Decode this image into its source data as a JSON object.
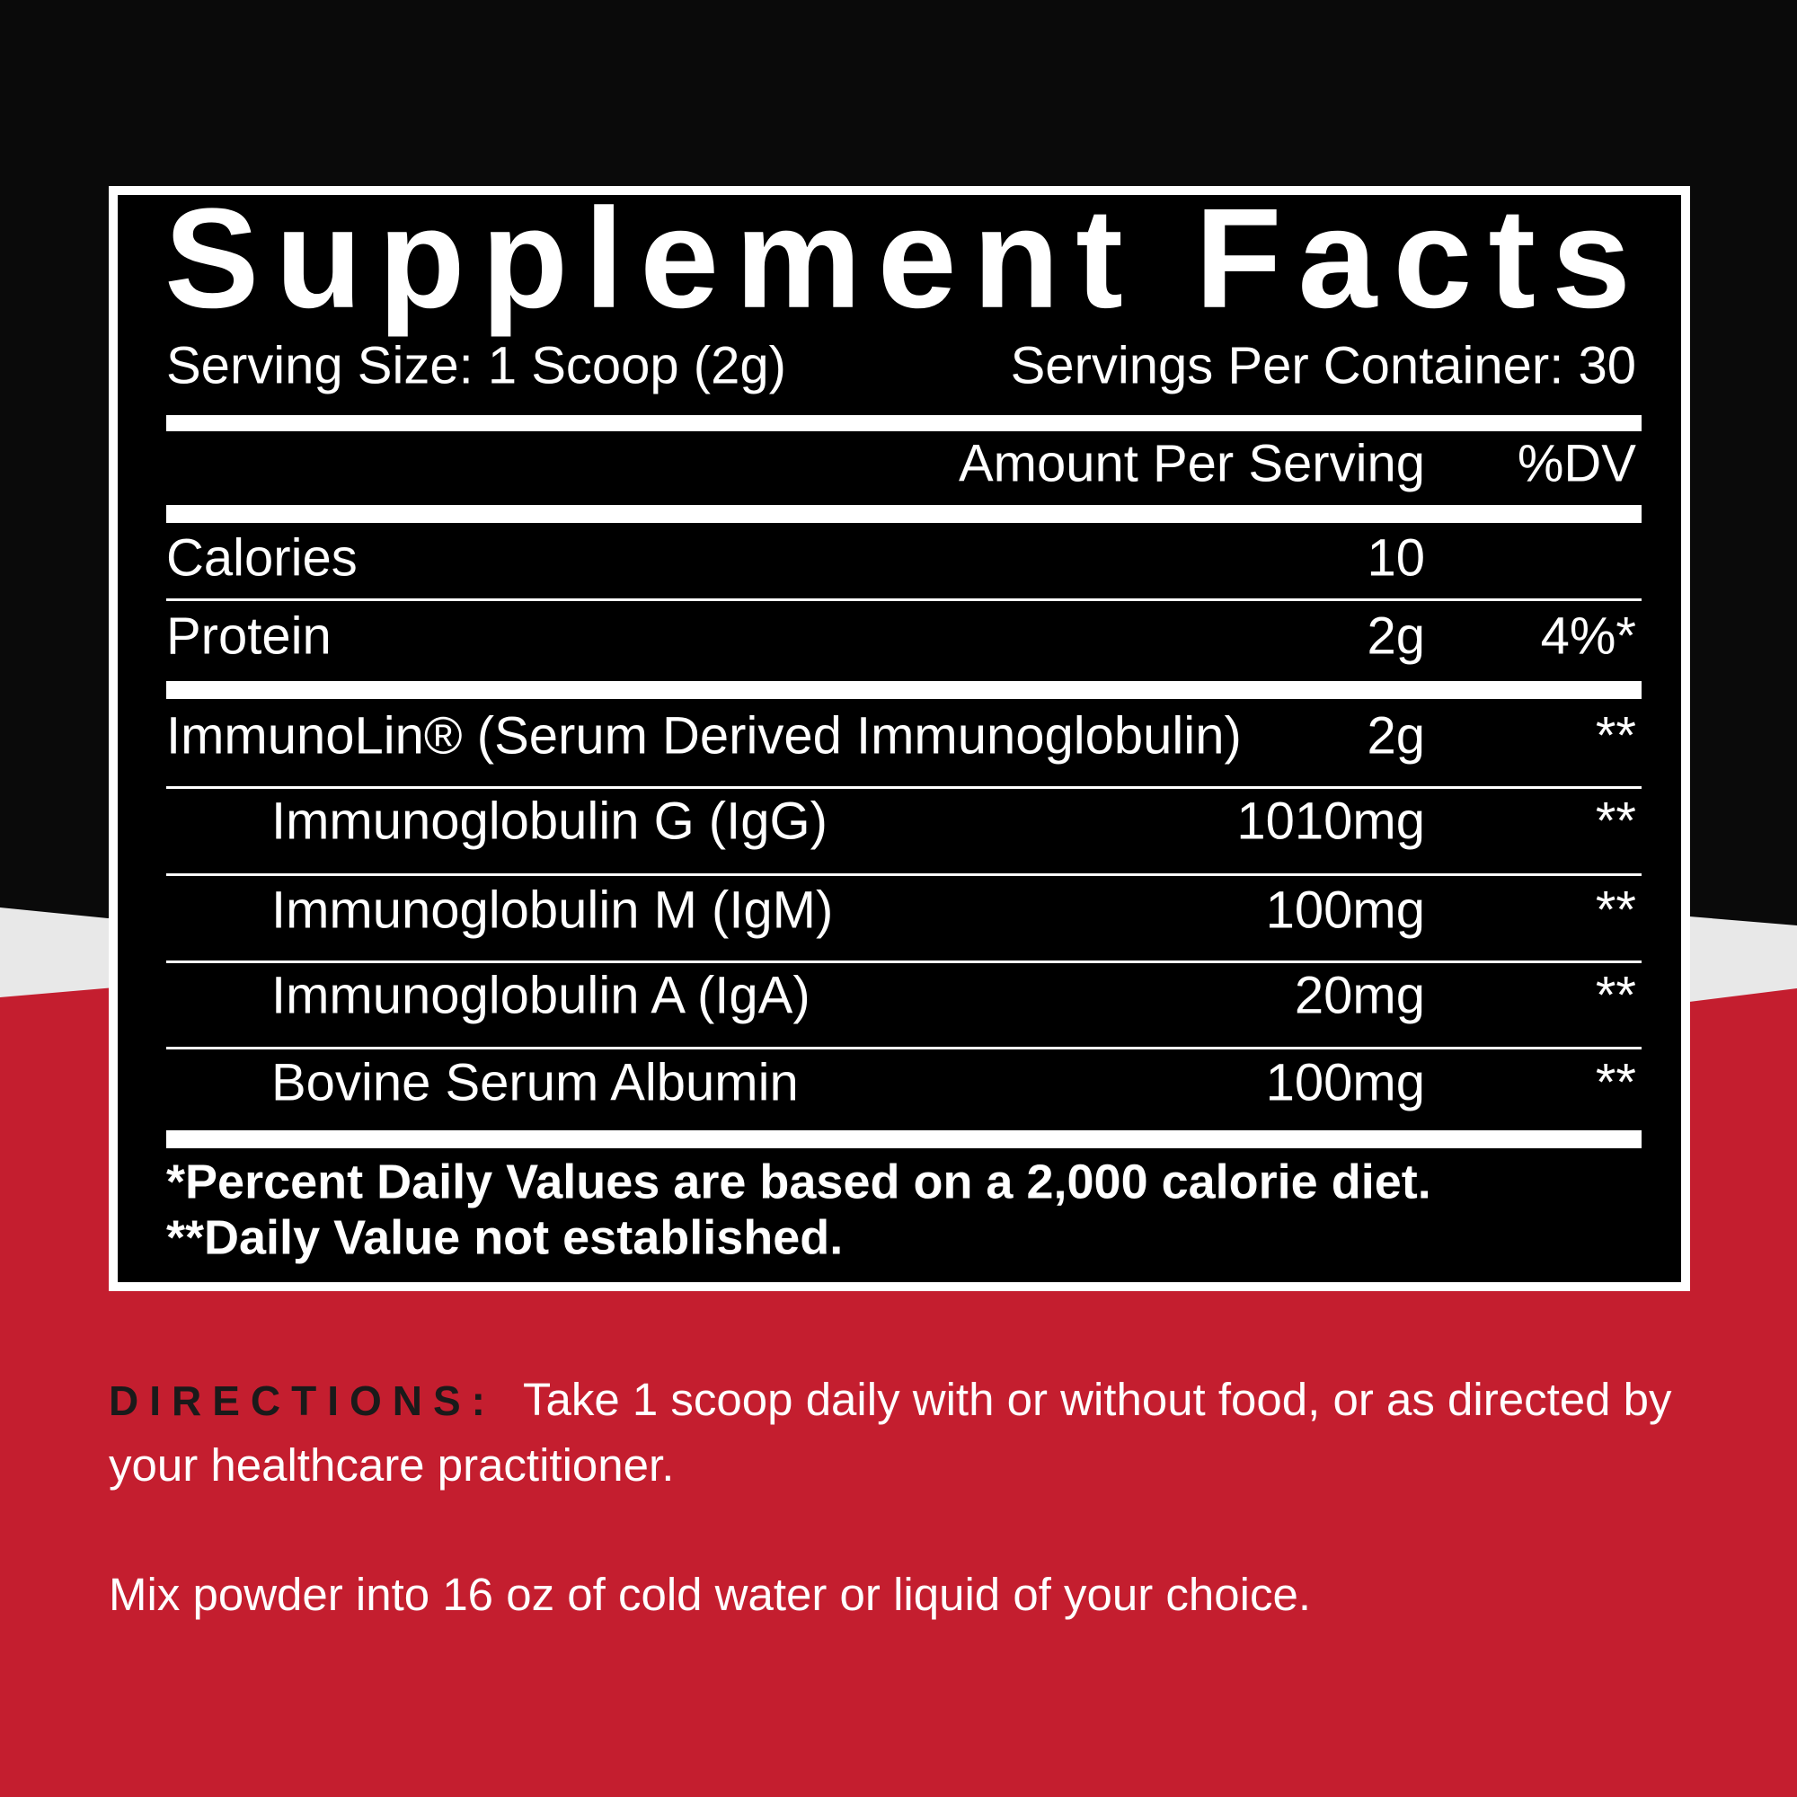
{
  "panel": {
    "title": "Supplement Facts",
    "serving_size": "Serving Size: 1 Scoop (2g)",
    "servings_per_container": "Servings Per Container: 30",
    "columns": [
      "Amount Per Serving",
      "%DV"
    ],
    "rows": [
      {
        "name": "Calories",
        "amount": "10",
        "dv": null
      },
      {
        "name": "Protein",
        "amount": "2g",
        "dv": "4%*"
      },
      {
        "name": "ImmunoLin® (Serum Derived Immunoglobulin)",
        "amount": "2g",
        "dv": "**"
      },
      {
        "name": "Immunoglobulin G (IgG)",
        "amount": "1010mg",
        "dv": "**"
      },
      {
        "name": "Immunoglobulin M (IgM)",
        "amount": "100mg",
        "dv": "**"
      },
      {
        "name": "Immunoglobulin A (IgA)",
        "amount": "20mg",
        "dv": "**"
      },
      {
        "name": "Bovine Serum Albumin",
        "amount": "100mg",
        "dv": "**"
      }
    ],
    "footnotes": [
      "*Percent Daily Values are based on a 2,000 calorie diet.",
      "**Daily Value not established."
    ]
  },
  "directions": {
    "label": "DIRECTIONS:",
    "text": "Take 1 scoop daily with or without food, or as directed by your healthcare practitioner.",
    "mix": "Mix powder into 16 oz of cold water or liquid of your choice."
  }
}
